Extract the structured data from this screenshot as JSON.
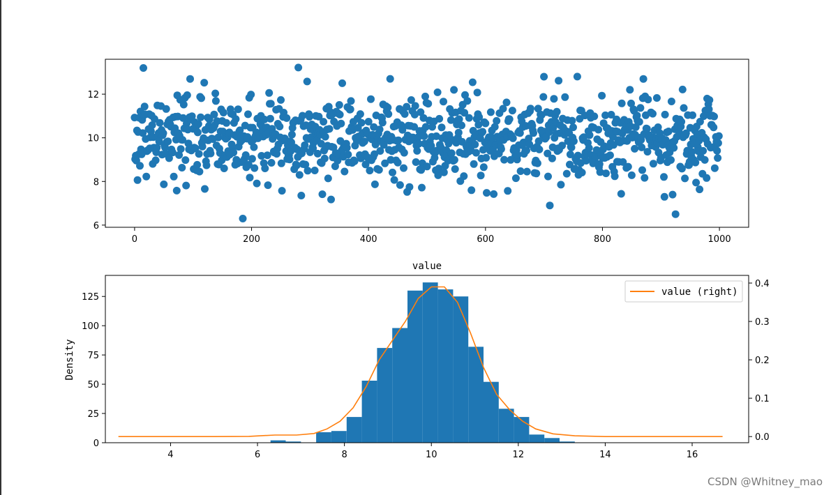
{
  "watermark": "CSDN @Whitney_mao",
  "chart_data": [
    {
      "type": "scatter",
      "title": "",
      "xlabel": "",
      "ylabel": "",
      "xlim": [
        -50,
        1050
      ],
      "ylim": [
        5.9,
        13.6
      ],
      "x_ticks": [
        0,
        200,
        400,
        600,
        800,
        1000
      ],
      "y_ticks": [
        6,
        8,
        10,
        12
      ],
      "color": "#1f77b4",
      "n_points": 1000,
      "center": 10,
      "spread": 1,
      "notable_points": [
        {
          "x": 15,
          "y": 13.2
        },
        {
          "x": 185,
          "y": 6.3
        },
        {
          "x": 925,
          "y": 6.5
        },
        {
          "x": 920,
          "y": 7.4
        },
        {
          "x": 710,
          "y": 6.9
        },
        {
          "x": 700,
          "y": 12.8
        },
        {
          "x": 870,
          "y": 12.7
        },
        {
          "x": 95,
          "y": 12.7
        },
        {
          "x": 355,
          "y": 12.5
        }
      ]
    },
    {
      "type": "bar",
      "title": "value",
      "xlabel": "",
      "ylabel": "Density",
      "xlim": [
        2.5,
        17.3
      ],
      "ylim": [
        0,
        143
      ],
      "x_ticks": [
        4,
        6,
        8,
        10,
        12,
        14,
        16
      ],
      "y_ticks": [
        0,
        25,
        50,
        75,
        100,
        125
      ],
      "color": "#1f77b4",
      "bin_edges": [
        6.3,
        6.65,
        7.0,
        7.35,
        7.7,
        8.05,
        8.4,
        8.75,
        9.1,
        9.45,
        9.8,
        10.15,
        10.5,
        10.85,
        11.2,
        11.55,
        11.9,
        12.25,
        12.6,
        12.95,
        13.3
      ],
      "values": [
        2,
        1,
        0,
        9,
        10,
        22,
        53,
        81,
        98,
        130,
        137,
        131,
        125,
        82,
        52,
        29,
        22,
        7,
        4,
        1
      ],
      "secondary": {
        "type": "line",
        "name": "value (right)",
        "color": "#ff7f0e",
        "ylim": [
          -0.016,
          0.42
        ],
        "y_ticks": [
          0.0,
          0.1,
          0.2,
          0.3,
          0.4
        ],
        "x": [
          2.8,
          4.0,
          5.0,
          5.8,
          6.4,
          6.9,
          7.3,
          7.6,
          7.9,
          8.2,
          8.5,
          8.8,
          9.1,
          9.4,
          9.7,
          10.0,
          10.3,
          10.6,
          10.9,
          11.2,
          11.5,
          11.8,
          12.1,
          12.4,
          12.8,
          13.3,
          14.0,
          15.0,
          16.0,
          16.7
        ],
        "y": [
          0.0,
          0.0,
          0.0,
          0.0005,
          0.004,
          0.004,
          0.008,
          0.02,
          0.04,
          0.075,
          0.13,
          0.2,
          0.25,
          0.3,
          0.36,
          0.39,
          0.39,
          0.35,
          0.27,
          0.18,
          0.11,
          0.07,
          0.04,
          0.02,
          0.007,
          0.002,
          0.0,
          0.0,
          0.0,
          0.0
        ]
      },
      "legend": {
        "label": "value (right)",
        "position": "top-right"
      }
    }
  ]
}
